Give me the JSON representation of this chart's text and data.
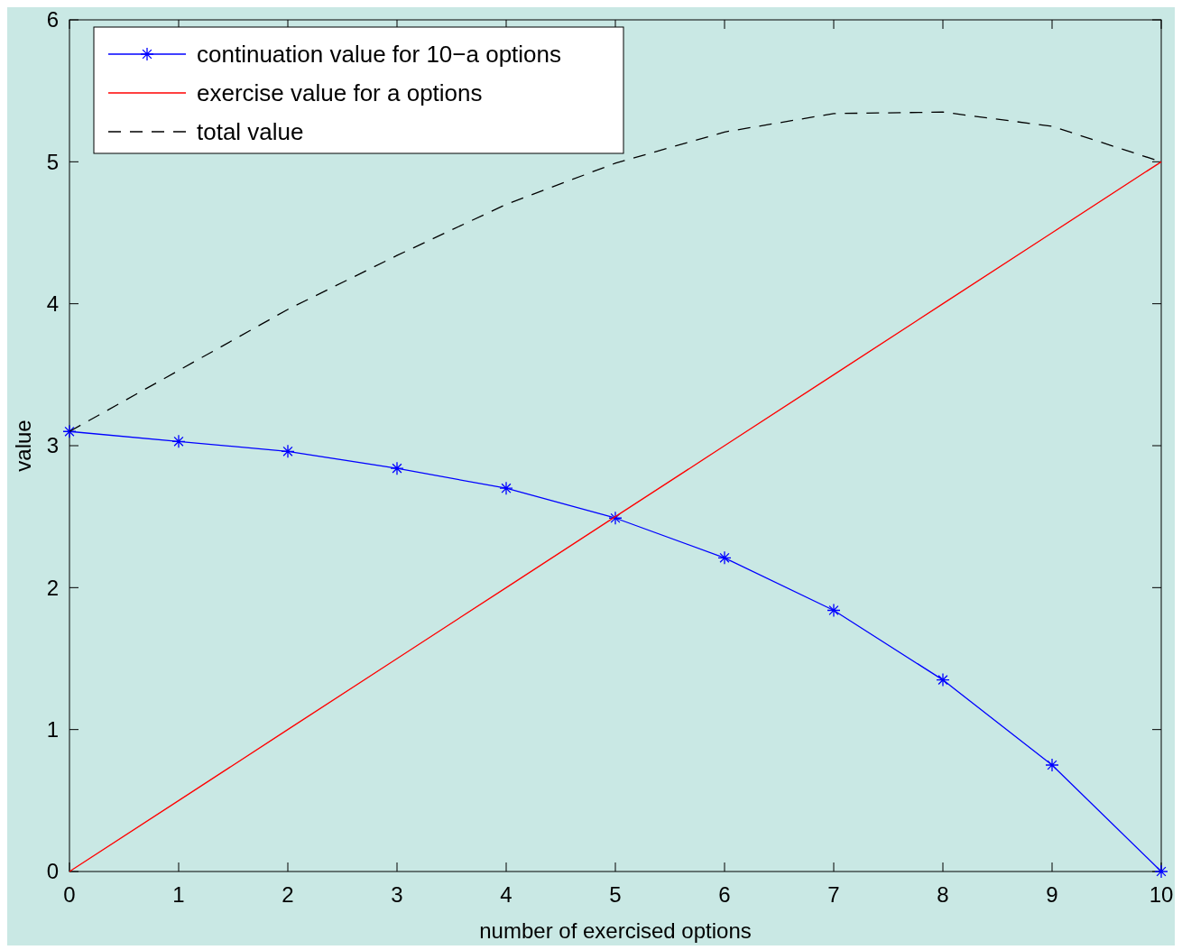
{
  "chart_data": {
    "type": "line",
    "xlabel": "number of exercised options",
    "ylabel": "value",
    "x": [
      0,
      1,
      2,
      3,
      4,
      5,
      6,
      7,
      8,
      9,
      10
    ],
    "series": [
      {
        "name": "continuation value for 10−a options",
        "color": "#0000ff",
        "marker": "cross",
        "line_style": "solid",
        "values": [
          3.1,
          3.03,
          2.96,
          2.84,
          2.7,
          2.49,
          2.21,
          1.84,
          1.35,
          0.75,
          0
        ]
      },
      {
        "name": "exercise value for a options",
        "color": "#ff0000",
        "marker": "none",
        "line_style": "solid",
        "values": [
          0,
          0.5,
          1,
          1.5,
          2,
          2.5,
          3,
          3.5,
          4,
          4.5,
          5
        ]
      },
      {
        "name": "total value",
        "color": "#000000",
        "marker": "none",
        "line_style": "dashed",
        "values": [
          3.1,
          3.53,
          3.96,
          4.34,
          4.7,
          4.99,
          5.21,
          5.34,
          5.35,
          5.25,
          5.0
        ]
      }
    ],
    "xlim": [
      0,
      10
    ],
    "xticks": [
      0,
      1,
      2,
      3,
      4,
      5,
      6,
      7,
      8,
      9,
      10
    ],
    "ylim": [
      0,
      6
    ],
    "yticks": [
      0,
      1,
      2,
      3,
      4,
      5,
      6
    ],
    "grid": false,
    "legend": "top left"
  }
}
